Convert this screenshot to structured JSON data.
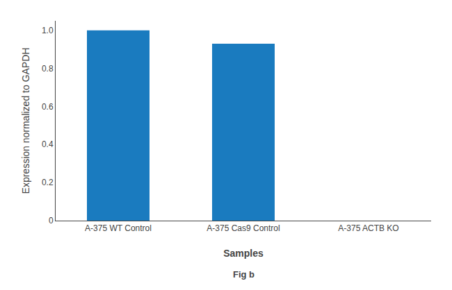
{
  "chart_data": {
    "type": "bar",
    "categories": [
      "A-375 WT Control",
      "A-375 Cas9 Control",
      "A-375 ACTB KO"
    ],
    "values": [
      1.0,
      0.93,
      0.0
    ],
    "color": "#1a7bbf",
    "xlabel": "Samples",
    "ylabel": "Expression normalized to GAPDH",
    "ylim": [
      0,
      1.05
    ],
    "yticks": [
      0,
      0.2,
      0.4,
      0.6,
      0.8,
      {
        "value": 1.0,
        "label": "1.0"
      }
    ],
    "grid": false,
    "annotations": [
      "Fig b"
    ]
  }
}
